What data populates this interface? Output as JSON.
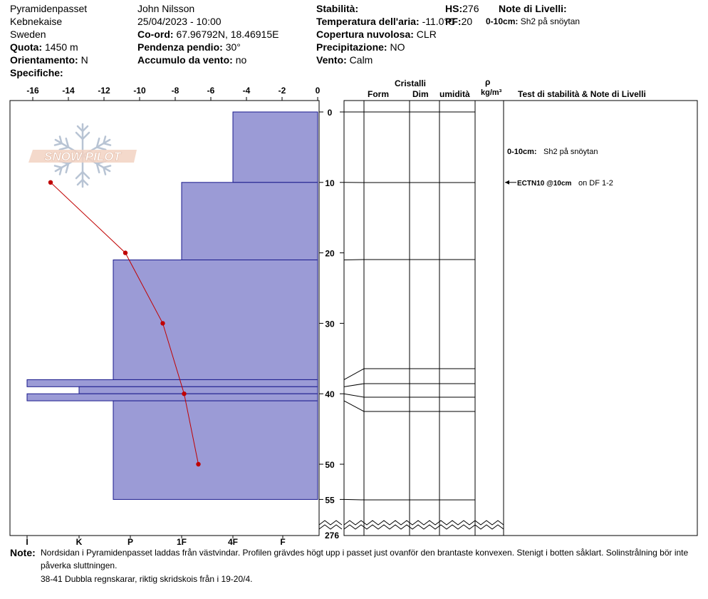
{
  "header": {
    "location": "Pyramidenpasset",
    "region": "Kebnekaise",
    "country": "Sweden",
    "altitude_label": "Quota:",
    "altitude_value": "1450 m",
    "aspect_label": "Orientamento:",
    "aspect_value": "N",
    "specifics_label": "Specifiche:",
    "observer": "John Nilsson",
    "datetime": "25/04/2023 - 10:00",
    "coords_label": "Co-ord:",
    "coords_value": "67.96792N, 18.46915E",
    "slope_label": "Pendenza pendio:",
    "slope_value": "30°",
    "wind_loading_label": "Accumulo da vento:",
    "wind_loading_value": "no",
    "stability_label": "Stabilità:",
    "air_temp_label": "Temperatura dell'aria:",
    "air_temp_value": "-11.0°C",
    "cloud_label": "Copertura nuvolosa:",
    "cloud_value": "CLR",
    "precip_label": "Precipitazione:",
    "precip_value": "NO",
    "wind_label": "Vento:",
    "wind_value": "Calm",
    "hs_label": "HS:",
    "hs_value": "276",
    "pf_label": "PF:",
    "pf_value": "20",
    "layer_notes_label": "Note di Livelli:",
    "layer_note_depth": "0-10cm:",
    "layer_note_text": "Sh2 på snöytan"
  },
  "logo": {
    "text": "SNOW PILOT"
  },
  "columns": {
    "crystals": "Cristalli",
    "form": "Form",
    "size": "Dim",
    "moisture": "umidità",
    "rho": "ρ",
    "density_unit": "kg/m³",
    "stability_notes": "Test di stabilità & Note di Livelli"
  },
  "notes": {
    "label": "Note:",
    "line1": "Nordsidan i Pyramidenpasset laddas från västvindar. Profilen grävdes högt upp i passet just ovanför den brantaste konvexen. Stenigt i botten såklart. Solinstrålning bör inte",
    "line2": "påverka sluttningen.",
    "line3": "38-41 Dubbla regnskarar, riktig skridskois från i 19-20/4."
  },
  "stability_annotations": [
    {
      "depth": 5.5,
      "bold": "0-10cm:",
      "text": "Sh2 på snöytan",
      "arrow": false
    },
    {
      "depth": 10,
      "bold": "ECTN10 @10cm",
      "text": "on DF 1-2",
      "arrow": true
    }
  ],
  "chart_data": {
    "type": "snow_profile",
    "temperature_axis": {
      "ticks": [
        -16,
        -14,
        -12,
        -10,
        -8,
        -6,
        -4,
        -2,
        0
      ],
      "range": [
        -17.2,
        0
      ]
    },
    "hardness_axis": {
      "ticks": [
        "I",
        "K",
        "P",
        "1F",
        "4F",
        "F"
      ]
    },
    "depth_axis": {
      "ticks": [
        0,
        10,
        20,
        30,
        40,
        50,
        55
      ],
      "bottom_label": "276",
      "range": [
        -1.7,
        56
      ]
    },
    "temperature_profile": [
      {
        "depth": 10,
        "temp": -15.0
      },
      {
        "depth": 20,
        "temp": -10.8
      },
      {
        "depth": 30,
        "temp": -8.7
      },
      {
        "depth": 40,
        "temp": -7.5
      },
      {
        "depth": 50,
        "temp": -6.7
      }
    ],
    "layers": [
      {
        "top": 0,
        "bottom": 10,
        "hardness": "4F"
      },
      {
        "top": 10,
        "bottom": 21,
        "hardness": "1F-"
      },
      {
        "top": 21,
        "bottom": 38,
        "hardness": "P+"
      },
      {
        "top": 38,
        "bottom": 39,
        "hardness": "I"
      },
      {
        "top": 39,
        "bottom": 40,
        "hardness": "K"
      },
      {
        "top": 40,
        "bottom": 41,
        "hardness": "I"
      },
      {
        "top": 41,
        "bottom": 55,
        "hardness": "P"
      }
    ],
    "colors": {
      "layer_fill": "#9b9bd6",
      "layer_stroke": "#1a1a8c",
      "temp_line": "#c00000"
    }
  }
}
